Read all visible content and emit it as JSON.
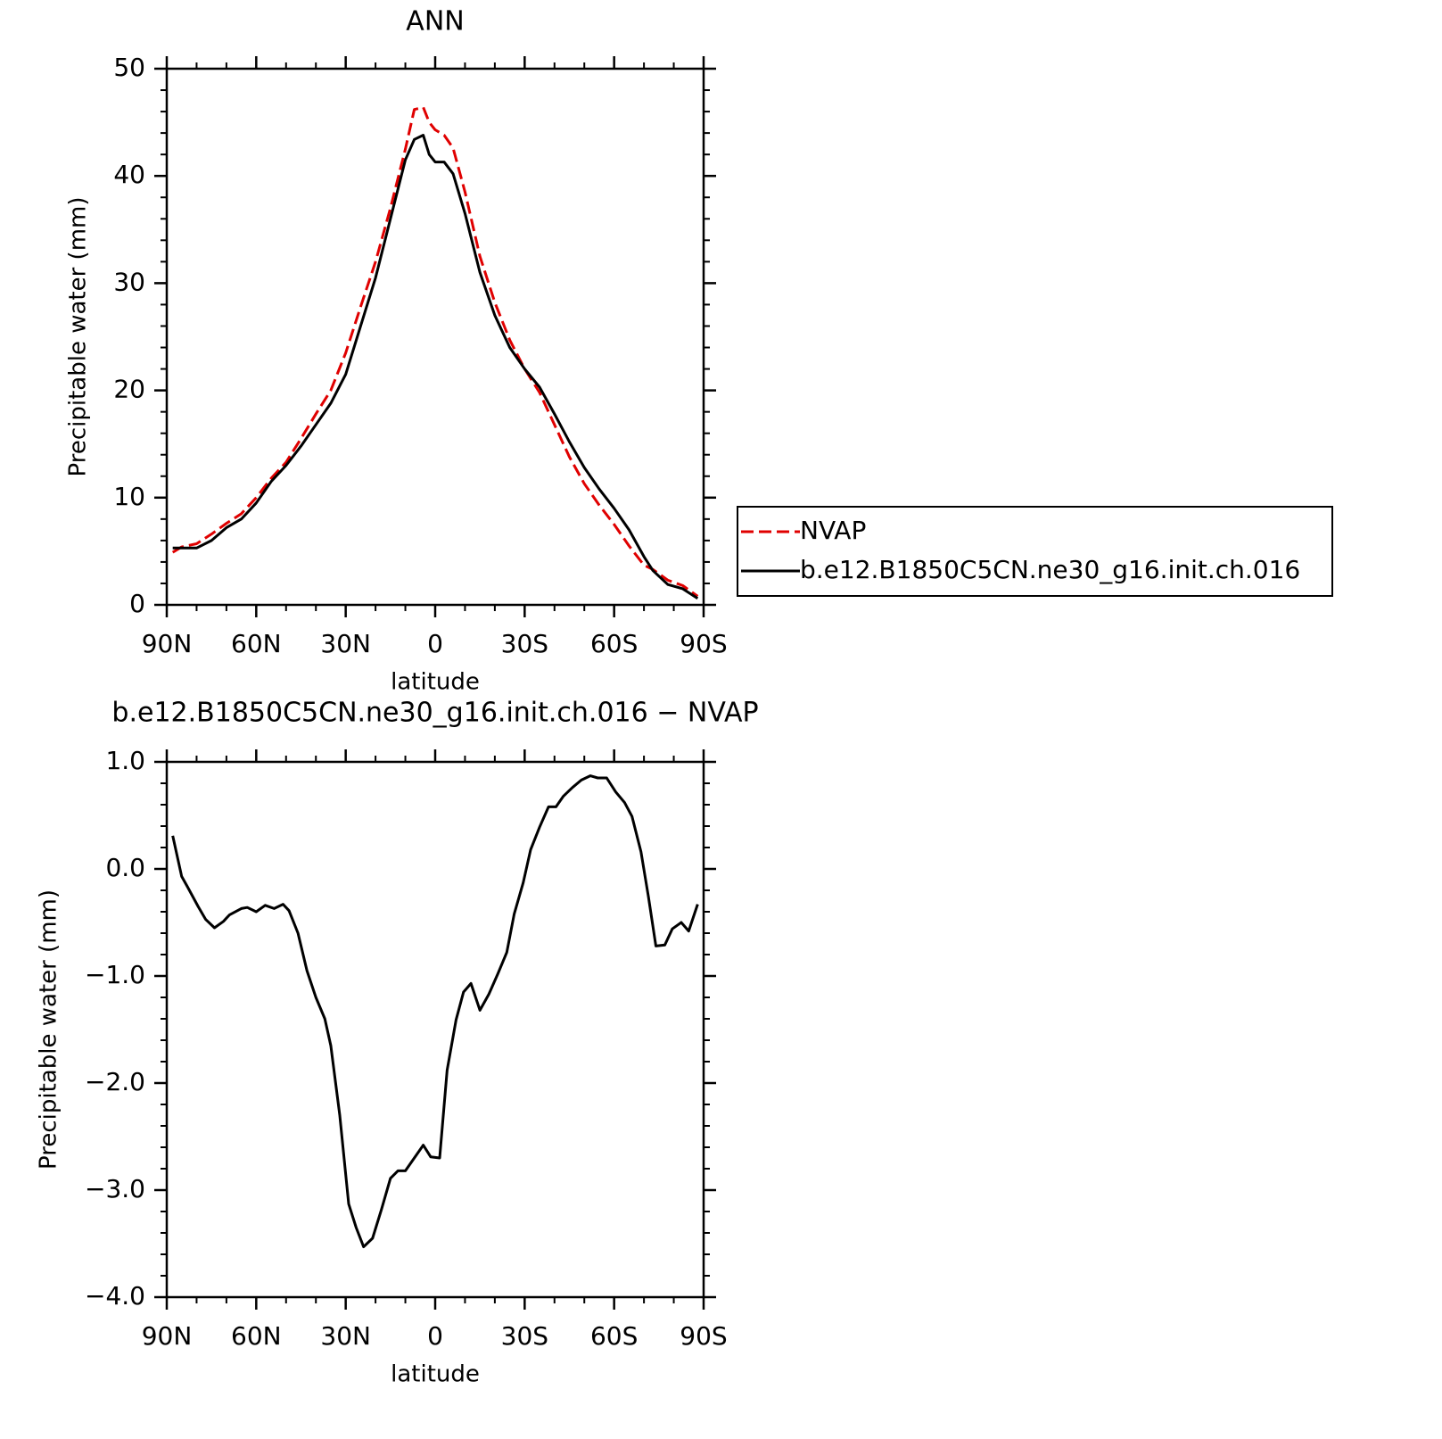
{
  "chart_data": [
    {
      "type": "line",
      "title": "ANN",
      "xlabel": "latitude",
      "ylabel": "Precipitable water (mm)",
      "x": [
        88,
        85,
        80,
        75,
        70,
        65,
        60,
        55,
        50,
        45,
        40,
        35,
        30,
        25,
        20,
        15,
        10,
        7,
        4,
        2,
        0,
        -3,
        -6,
        -10,
        -15,
        -20,
        -25,
        -30,
        -35,
        -40,
        -45,
        -50,
        -55,
        -60,
        -65,
        -70,
        -73,
        -78,
        -83,
        -88
      ],
      "series": [
        {
          "name": "NVAP",
          "color": "#e00000",
          "style": "dashed",
          "values": [
            4.9,
            5.4,
            5.7,
            6.6,
            7.6,
            8.5,
            10.0,
            11.8,
            13.3,
            15.5,
            17.8,
            20.0,
            23.5,
            27.8,
            32.0,
            37.0,
            42.5,
            46.2,
            46.4,
            45.0,
            44.3,
            43.8,
            42.6,
            38.5,
            32.5,
            28.2,
            24.7,
            22.0,
            19.8,
            16.8,
            13.8,
            11.3,
            9.3,
            7.5,
            5.5,
            3.7,
            3.3,
            2.3,
            1.8,
            0.8
          ]
        },
        {
          "name": "b.e12.B1850C5CN.ne30_g16.init.ch.016",
          "color": "#000000",
          "style": "solid",
          "values": [
            5.3,
            5.3,
            5.3,
            6.0,
            7.2,
            8.0,
            9.5,
            11.5,
            13.0,
            14.8,
            16.8,
            18.8,
            21.5,
            26.0,
            30.5,
            36.0,
            41.5,
            43.4,
            43.8,
            42.0,
            41.3,
            41.3,
            40.2,
            36.5,
            31.0,
            27.0,
            24.0,
            22.0,
            20.3,
            17.8,
            15.2,
            12.8,
            10.8,
            9.0,
            7.0,
            4.5,
            3.2,
            1.9,
            1.5,
            0.6
          ]
        }
      ],
      "xlim": [
        90,
        -90
      ],
      "xticks": [
        {
          "value": 90,
          "label": "90N"
        },
        {
          "value": 60,
          "label": "60N"
        },
        {
          "value": 30,
          "label": "30N"
        },
        0,
        {
          "value": -30,
          "label": "30S"
        },
        {
          "value": -60,
          "label": "60S"
        },
        {
          "value": -90,
          "label": "90S"
        }
      ],
      "ylim": [
        0,
        50
      ],
      "yticks": [
        0,
        10,
        20,
        30,
        40,
        50
      ],
      "legend": "right"
    },
    {
      "type": "line",
      "title": "b.e12.B1850C5CN.ne30_g16.init.ch.016 − NVAP",
      "xlabel": "latitude",
      "ylabel": "Precipitable water (mm)",
      "x": [
        88,
        85,
        83,
        79.5,
        77,
        74,
        71,
        69,
        65,
        63,
        60,
        57,
        54,
        51,
        49,
        46,
        43,
        40,
        37,
        35,
        32,
        29,
        26.5,
        24,
        21,
        18,
        15,
        12.5,
        10,
        7,
        4,
        1.5,
        -1.5,
        -4,
        -7,
        -9.5,
        -12,
        -15,
        -18,
        -21,
        -24,
        -26.5,
        -29.5,
        -32,
        -35,
        -38,
        -40.5,
        -43,
        -46,
        -49,
        -52,
        -54.5,
        -57.5,
        -60.5,
        -63.5,
        -66,
        -69,
        -71.5,
        -74,
        -77,
        -79.5,
        -82.5,
        -85,
        -88
      ],
      "series": [
        {
          "name": "b.e12.B1850C5CN.ne30_g16.init.ch.016 − NVAP",
          "color": "#000000",
          "style": "solid",
          "values": [
            0.31,
            -0.07,
            -0.17,
            -0.35,
            -0.47,
            -0.55,
            -0.49,
            -0.43,
            -0.37,
            -0.36,
            -0.4,
            -0.34,
            -0.37,
            -0.33,
            -0.39,
            -0.6,
            -0.95,
            -1.2,
            -1.4,
            -1.65,
            -2.3,
            -3.13,
            -3.35,
            -3.53,
            -3.45,
            -3.18,
            -2.89,
            -2.82,
            -2.82,
            -2.7,
            -2.58,
            -2.69,
            -2.7,
            -1.88,
            -1.41,
            -1.15,
            -1.07,
            -1.32,
            -1.17,
            -0.98,
            -0.78,
            -0.42,
            -0.13,
            0.18,
            0.39,
            0.58,
            0.58,
            0.68,
            0.76,
            0.83,
            0.87,
            0.85,
            0.85,
            0.72,
            0.62,
            0.49,
            0.16,
            -0.26,
            -0.72,
            -0.71,
            -0.56,
            -0.5,
            -0.58,
            -0.33
          ]
        }
      ],
      "xlim": [
        90,
        -90
      ],
      "xticks": [
        {
          "value": 90,
          "label": "90N"
        },
        {
          "value": 60,
          "label": "60N"
        },
        {
          "value": 30,
          "label": "30N"
        },
        0,
        {
          "value": -30,
          "label": "30S"
        },
        {
          "value": -60,
          "label": "60S"
        },
        {
          "value": -90,
          "label": "90S"
        }
      ],
      "ylim": [
        -4,
        1
      ],
      "yticks": [
        {
          "value": -4,
          "label": "−4.0"
        },
        {
          "value": -3,
          "label": "−3.0"
        },
        {
          "value": -2,
          "label": "−2.0"
        },
        {
          "value": -1,
          "label": "−1.0"
        },
        {
          "value": 0,
          "label": "0.0"
        },
        {
          "value": 1,
          "label": "1.0"
        }
      ]
    }
  ]
}
